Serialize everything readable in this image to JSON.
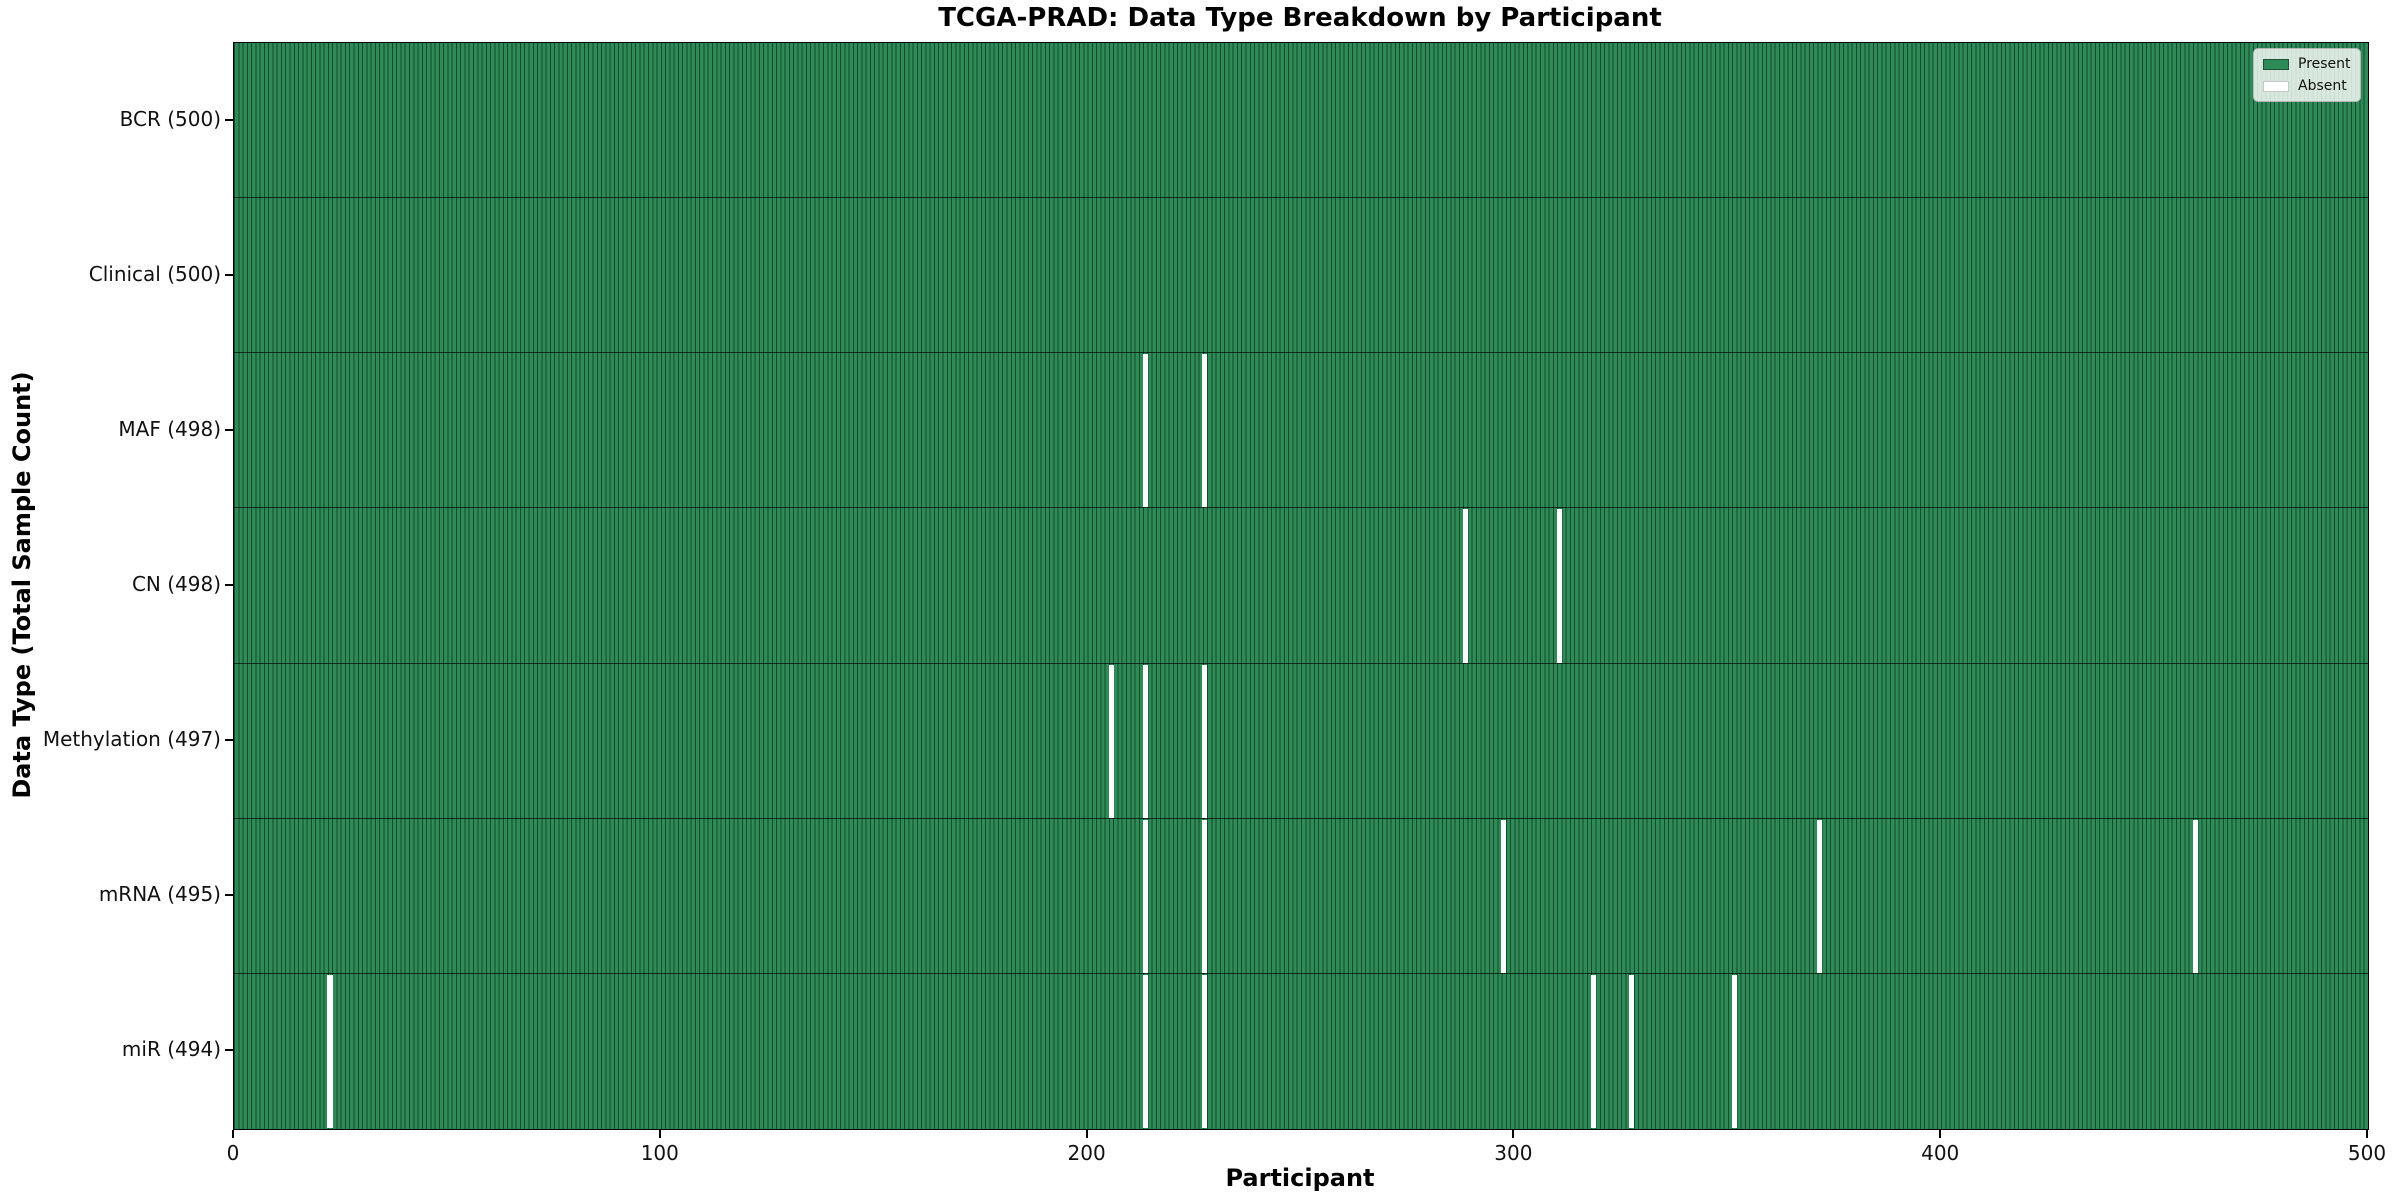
{
  "title": "TCGA-PRAD: Data Type Breakdown by Participant",
  "colors": {
    "present": "#2e8b57",
    "absent": "#ffffff",
    "bar_edge": "#0a2814",
    "text": "#000000",
    "legend_border": "#b5b5b5"
  },
  "legend": {
    "position": "upper right",
    "entries": [
      {
        "label": "Present",
        "color": "#2e8b57"
      },
      {
        "label": "Absent",
        "color": "#ffffff"
      }
    ]
  },
  "chart_data": {
    "type": "heatmap",
    "title": "TCGA-PRAD: Data Type Breakdown by Participant",
    "xlabel": "Participant",
    "ylabel": "Data Type (Total Sample Count)",
    "xlim": [
      0,
      500
    ],
    "x_ticks": [
      0,
      100,
      200,
      300,
      400,
      500
    ],
    "n_participants": 500,
    "grid": false,
    "legend_position": "upper right",
    "value_encoding": {
      "present": 1,
      "absent": 0
    },
    "rows": [
      {
        "label": "BCR (500)",
        "data_type": "BCR",
        "total": 500,
        "absent_participants": []
      },
      {
        "label": "Clinical (500)",
        "data_type": "Clinical",
        "total": 500,
        "absent_participants": []
      },
      {
        "label": "MAF (498)",
        "data_type": "MAF",
        "total": 498,
        "absent_participants": [
          213,
          227
        ]
      },
      {
        "label": "CN (498)",
        "data_type": "CN",
        "total": 498,
        "absent_participants": [
          288,
          310
        ]
      },
      {
        "label": "Methylation (497)",
        "data_type": "Methylation",
        "total": 497,
        "absent_participants": [
          205,
          213,
          227
        ]
      },
      {
        "label": "mRNA (495)",
        "data_type": "mRNA",
        "total": 495,
        "absent_participants": [
          213,
          227,
          297,
          371,
          459
        ]
      },
      {
        "label": "miR (494)",
        "data_type": "miR",
        "total": 494,
        "absent_participants": [
          22,
          213,
          227,
          318,
          327,
          351
        ]
      }
    ]
  }
}
